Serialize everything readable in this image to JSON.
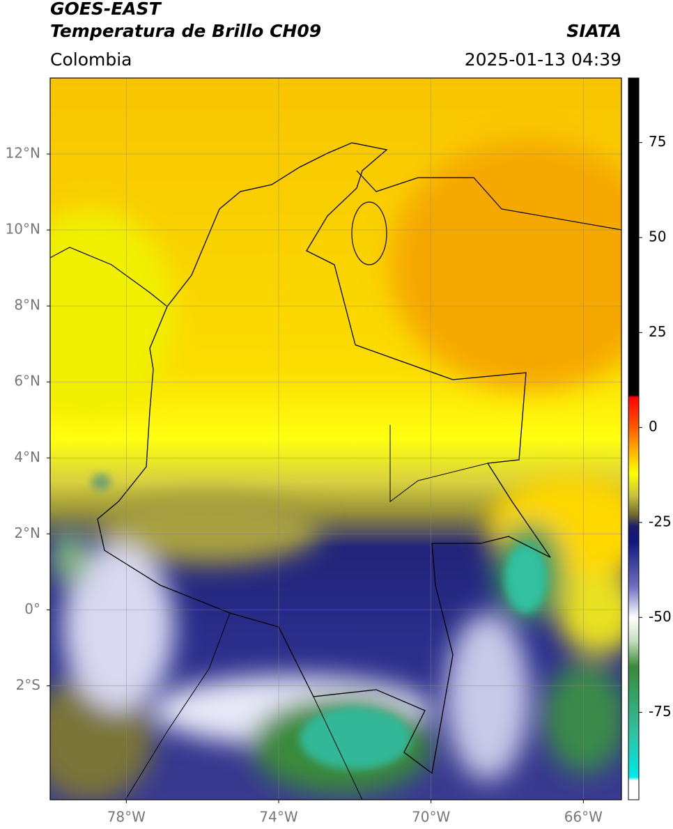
{
  "header": {
    "title": "GOES-EAST",
    "subtitle": "Temperatura de Brillo CH09",
    "agency": "SIATA",
    "region": "Colombia",
    "timestamp": "2025-01-13 04:39"
  },
  "map": {
    "xlim": [
      -80,
      -65
    ],
    "ylim": [
      -5,
      14
    ],
    "grid": true,
    "xticks": [
      {
        "value": -78,
        "label": "78°W"
      },
      {
        "value": -74,
        "label": "74°W"
      },
      {
        "value": -70,
        "label": "70°W"
      },
      {
        "value": -66,
        "label": "66°W"
      }
    ],
    "yticks": [
      {
        "value": 12,
        "label": "12°N"
      },
      {
        "value": 10,
        "label": "10°N"
      },
      {
        "value": 8,
        "label": "8°N"
      },
      {
        "value": 6,
        "label": "6°N"
      },
      {
        "value": 4,
        "label": "4°N"
      },
      {
        "value": 2,
        "label": "2°N"
      },
      {
        "value": 0,
        "label": "0°"
      },
      {
        "value": -2,
        "label": "2°S"
      }
    ]
  },
  "colorbar": {
    "lim": [
      -98,
      92
    ],
    "ticks": [
      75,
      50,
      25,
      0,
      -25,
      -50,
      -75
    ],
    "stops": [
      [
        92,
        "#000000"
      ],
      [
        8.5,
        "#000000"
      ],
      [
        8,
        "#ff0000"
      ],
      [
        0,
        "#ff5a00"
      ],
      [
        -6,
        "#ffb000"
      ],
      [
        -12,
        "#ffff00"
      ],
      [
        -18,
        "#c8c040"
      ],
      [
        -23,
        "#6e6a30"
      ],
      [
        -26,
        "#1c1c6a"
      ],
      [
        -30,
        "#101880"
      ],
      [
        -42,
        "#7070c0"
      ],
      [
        -50,
        "#ffffff"
      ],
      [
        -56,
        "#c8e0c0"
      ],
      [
        -63,
        "#3a8a3a"
      ],
      [
        -80,
        "#30c0a0"
      ],
      [
        -92,
        "#00e8e8"
      ],
      [
        -93,
        "#ffffff"
      ],
      [
        -98,
        "#ffffff"
      ]
    ]
  }
}
